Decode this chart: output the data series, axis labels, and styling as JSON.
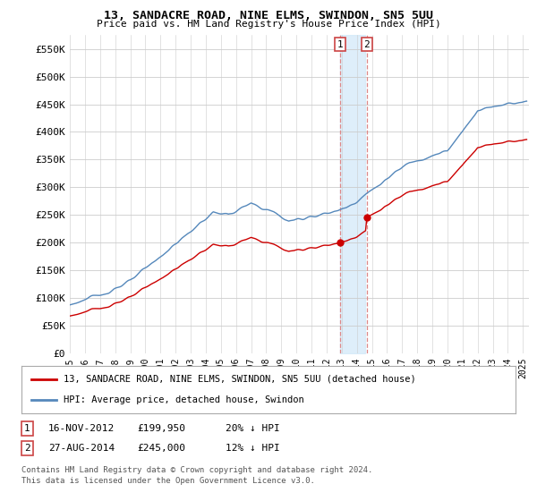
{
  "title": "13, SANDACRE ROAD, NINE ELMS, SWINDON, SN5 5UU",
  "subtitle": "Price paid vs. HM Land Registry's House Price Index (HPI)",
  "ylim": [
    0,
    575000
  ],
  "yticks": [
    0,
    50000,
    100000,
    150000,
    200000,
    250000,
    300000,
    350000,
    400000,
    450000,
    500000,
    550000
  ],
  "ytick_labels": [
    "£0",
    "£50K",
    "£100K",
    "£150K",
    "£200K",
    "£250K",
    "£300K",
    "£350K",
    "£400K",
    "£450K",
    "£500K",
    "£550K"
  ],
  "hpi_color": "#5588bb",
  "price_color": "#cc0000",
  "purchase1_date_num": 2012.877,
  "purchase1_price": 199950,
  "purchase2_date_num": 2014.66,
  "purchase2_price": 245000,
  "shade_color": "#d0e8f8",
  "vline_color": "#dd8888",
  "legend_line1": "13, SANDACRE ROAD, NINE ELMS, SWINDON, SN5 5UU (detached house)",
  "legend_line2": "HPI: Average price, detached house, Swindon",
  "ann1_num": "1",
  "ann1_date": "16-NOV-2012",
  "ann1_price": "£199,950",
  "ann1_hpi": "20% ↓ HPI",
  "ann2_num": "2",
  "ann2_date": "27-AUG-2014",
  "ann2_price": "£245,000",
  "ann2_hpi": "12% ↓ HPI",
  "footnote1": "Contains HM Land Registry data © Crown copyright and database right 2024.",
  "footnote2": "This data is licensed under the Open Government Licence v3.0.",
  "background_color": "#ffffff",
  "grid_color": "#cccccc",
  "box_edge_color": "#cc4444"
}
